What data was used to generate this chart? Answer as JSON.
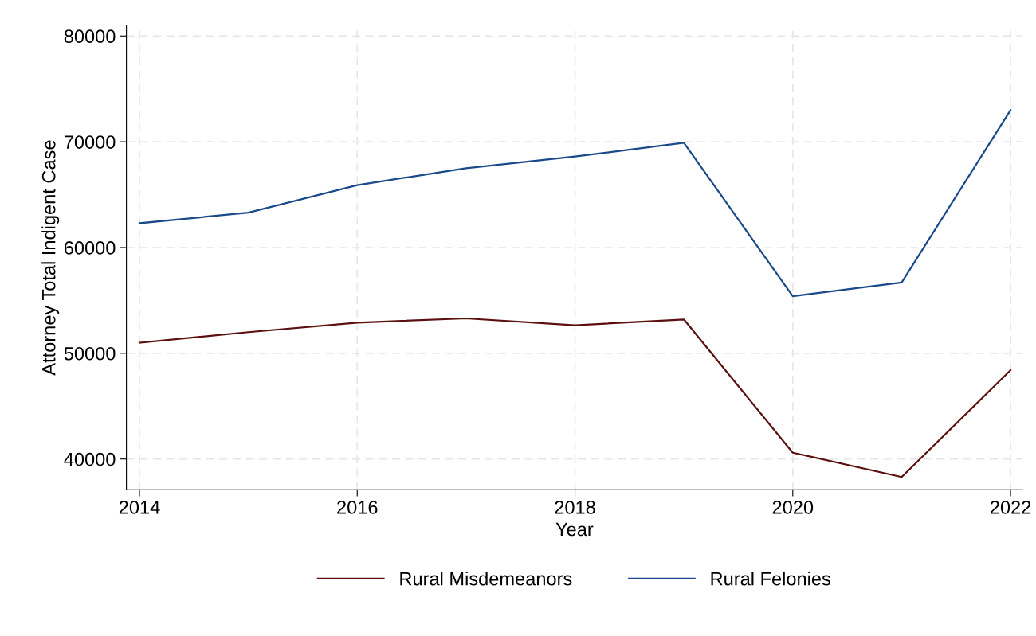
{
  "chart_data": {
    "type": "line",
    "xlabel": "Year",
    "ylabel": "Attorney Total Indigent Case",
    "x": [
      2014,
      2015,
      2016,
      2017,
      2018,
      2019,
      2020,
      2021,
      2022
    ],
    "series": [
      {
        "name": "Rural Misdemeanors",
        "color": "#5c0f0f",
        "values": [
          51000,
          52000,
          52900,
          53300,
          52650,
          53200,
          40600,
          38300,
          48400
        ]
      },
      {
        "name": "Rural Felonies",
        "color": "#1a4a8a",
        "values": [
          62300,
          63300,
          65900,
          67500,
          68600,
          69900,
          55400,
          56700,
          73000
        ]
      }
    ],
    "xlim": [
      2013.88,
      2022.11
    ],
    "xticks": [
      2014,
      2016,
      2018,
      2020,
      2022
    ],
    "ylim": [
      37100,
      81000
    ],
    "yticks": [
      40000,
      50000,
      60000,
      70000,
      80000
    ],
    "grid": true,
    "legend": "bottom",
    "marker": "none",
    "line_style": "solid"
  }
}
